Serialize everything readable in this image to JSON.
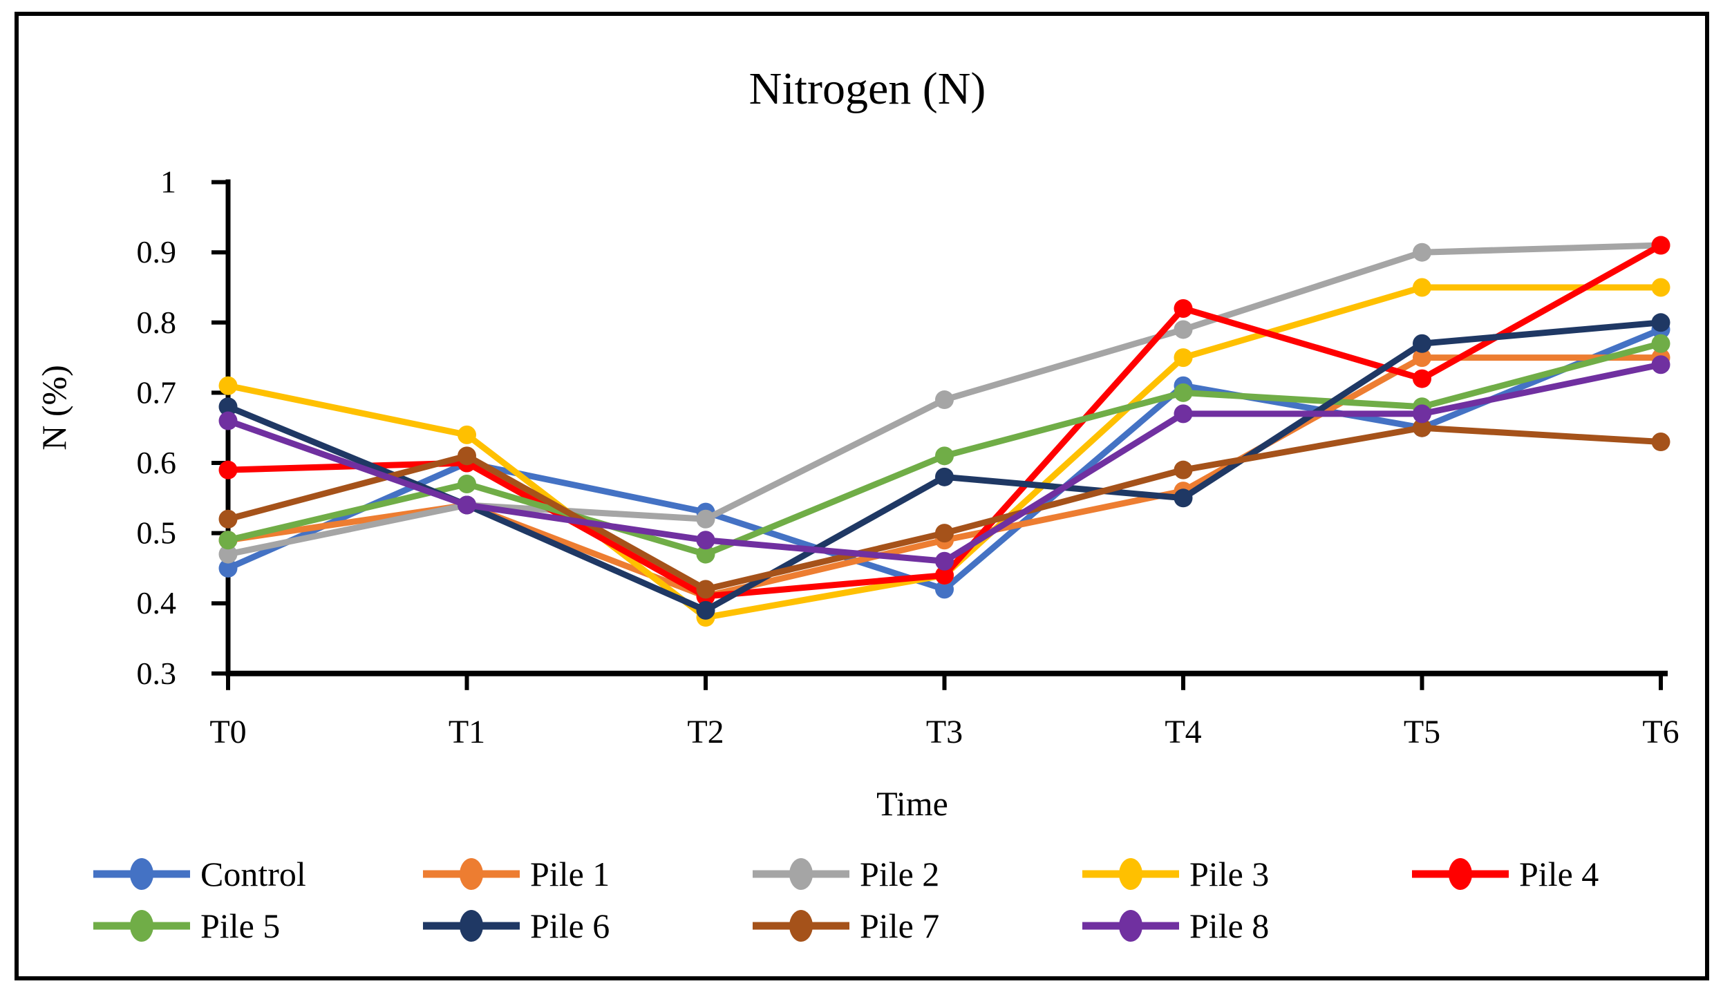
{
  "title": "Nitrogen (N)",
  "chart_data": {
    "type": "line",
    "title": "Nitrogen (N)",
    "xlabel": "Time",
    "ylabel": "N (%)",
    "categories": [
      "T0",
      "T1",
      "T2",
      "T3",
      "T4",
      "T5",
      "T6"
    ],
    "ylim": [
      0.3,
      1.0
    ],
    "ytick_step": 0.1,
    "ytick_labels": [
      "1",
      "0.9",
      "0.8",
      "0.7",
      "0.6",
      "0.5",
      "0.4",
      "0.3"
    ],
    "grid": false,
    "legend_position": "bottom",
    "marker": "circle",
    "axis_color": "#000000",
    "series": [
      {
        "name": "Control",
        "color": "#4472C4",
        "values": [
          0.45,
          0.6,
          0.53,
          0.42,
          0.71,
          0.65,
          0.79
        ]
      },
      {
        "name": "Pile 1",
        "color": "#ED7D31",
        "values": [
          0.49,
          0.54,
          0.41,
          0.49,
          0.56,
          0.75,
          0.75
        ]
      },
      {
        "name": "Pile 2",
        "color": "#A5A5A5",
        "values": [
          0.47,
          0.54,
          0.52,
          0.69,
          0.79,
          0.9,
          0.91
        ]
      },
      {
        "name": "Pile 3",
        "color": "#FFC000",
        "values": [
          0.71,
          0.64,
          0.38,
          0.44,
          0.75,
          0.85,
          0.85
        ]
      },
      {
        "name": "Pile 4",
        "color": "#FF0000",
        "values": [
          0.59,
          0.6,
          0.41,
          0.44,
          0.82,
          0.72,
          0.91
        ]
      },
      {
        "name": "Pile 5",
        "color": "#70AD47",
        "values": [
          0.49,
          0.57,
          0.47,
          0.61,
          0.7,
          0.68,
          0.77
        ]
      },
      {
        "name": "Pile 6",
        "color": "#1F3864",
        "values": [
          0.68,
          0.54,
          0.39,
          0.58,
          0.55,
          0.77,
          0.8
        ]
      },
      {
        "name": "Pile 7",
        "color": "#A5521A",
        "values": [
          0.52,
          0.61,
          0.42,
          0.5,
          0.59,
          0.65,
          0.63
        ]
      },
      {
        "name": "Pile 8",
        "color": "#7030A0",
        "values": [
          0.66,
          0.54,
          0.49,
          0.46,
          0.67,
          0.67,
          0.74
        ]
      }
    ]
  }
}
